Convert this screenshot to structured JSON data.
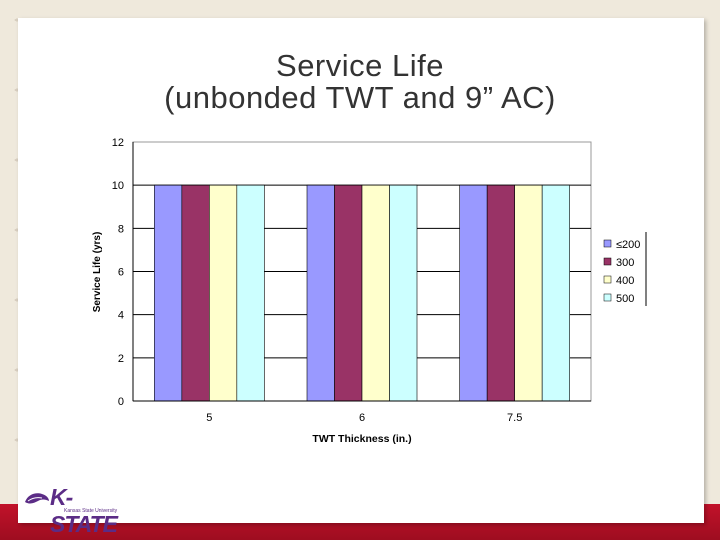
{
  "slide": {
    "title_line1": "Service Life",
    "title_line2": "(unbonded TWT and 9” AC)"
  },
  "logo": {
    "wordmark": "K-STATE",
    "subtitle": "Kansas State University"
  },
  "chart_data": {
    "type": "bar",
    "title": "",
    "xlabel": "TWT Thickness (in.)",
    "ylabel": "Service Life (yrs)",
    "categories": [
      "5",
      "6",
      "7.5"
    ],
    "ylim": [
      0,
      12
    ],
    "yticks": [
      0,
      2,
      4,
      6,
      8,
      10,
      12
    ],
    "grid": true,
    "legend_position": "right",
    "series": [
      {
        "name": "≤200",
        "values": [
          10,
          10,
          10
        ],
        "color": "#9999ff"
      },
      {
        "name": "300",
        "values": [
          10,
          10,
          10
        ],
        "color": "#993366"
      },
      {
        "name": "400",
        "values": [
          10,
          10,
          10
        ],
        "color": "#ffffcc"
      },
      {
        "name": "500",
        "values": [
          10,
          10,
          10
        ],
        "color": "#ccffff"
      }
    ]
  }
}
